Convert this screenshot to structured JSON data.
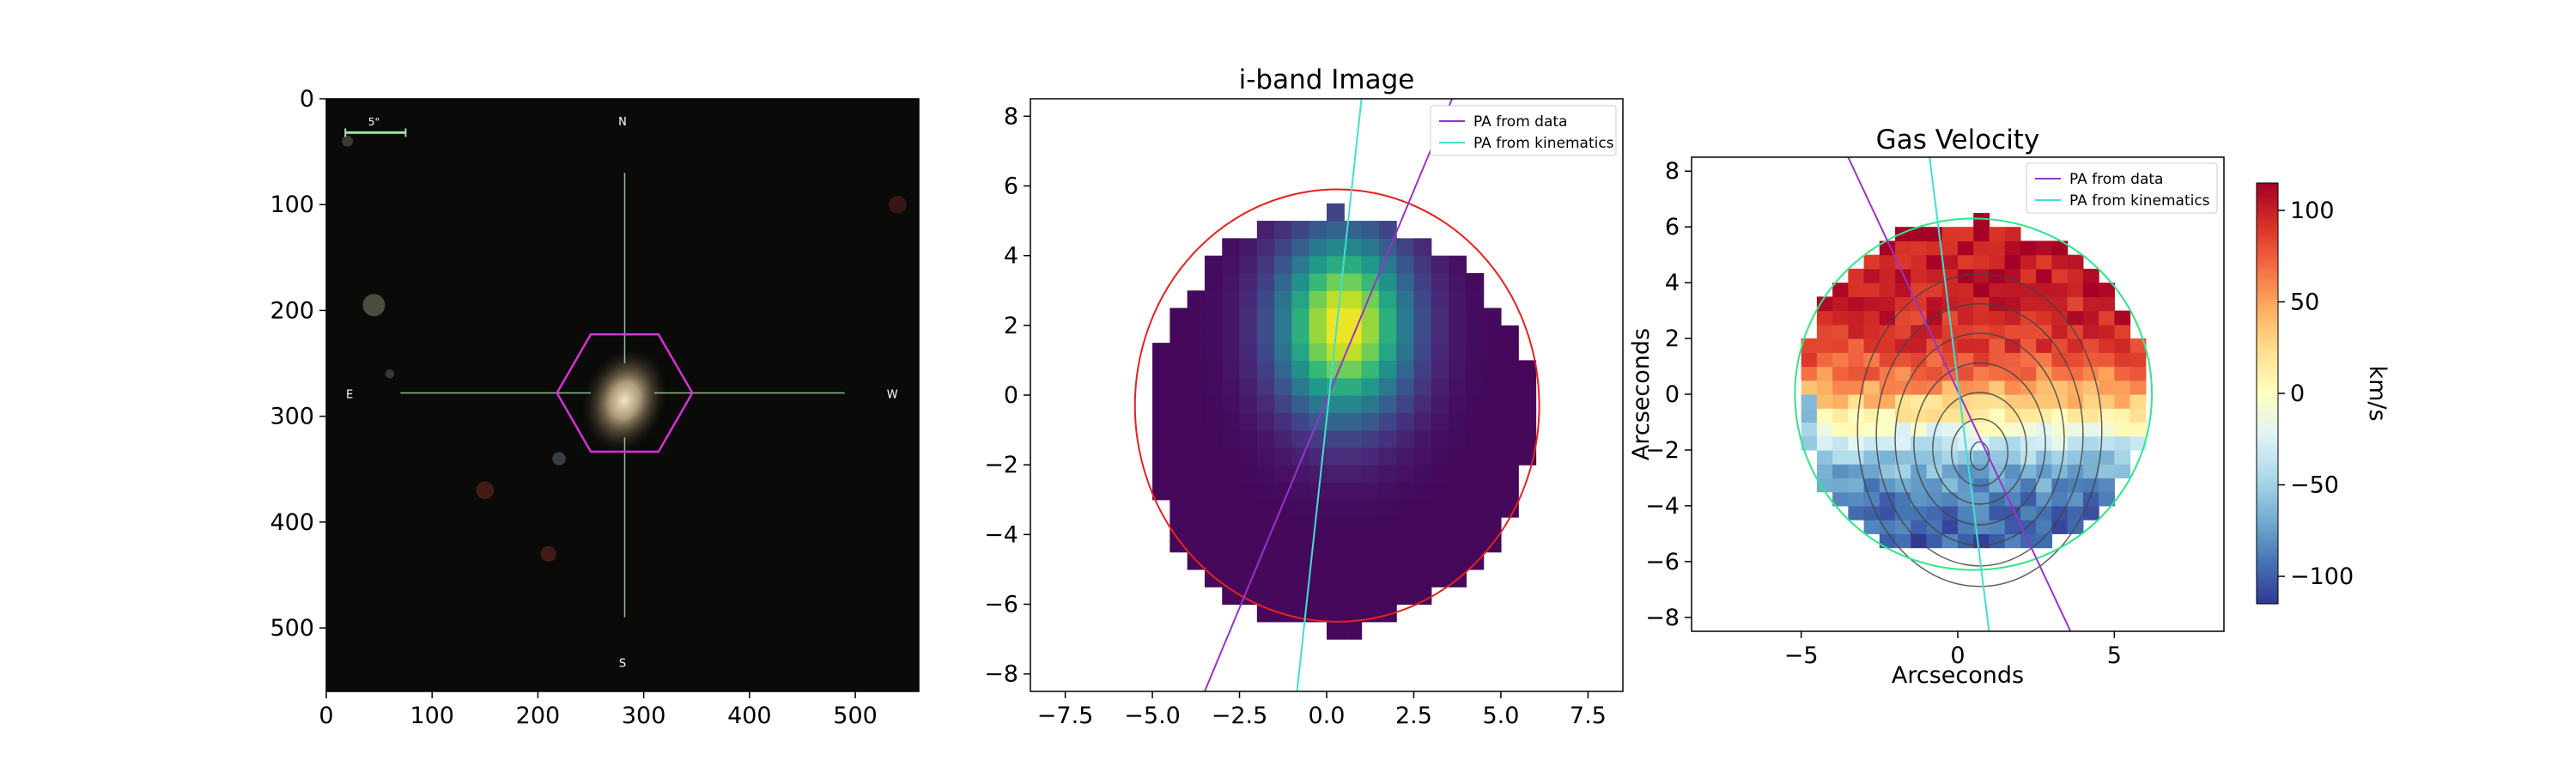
{
  "chart_data": [
    {
      "type": "image",
      "title": "",
      "xlim": [
        0,
        560
      ],
      "ylim": [
        0,
        560
      ],
      "x_ticks": [
        0,
        100,
        200,
        300,
        400,
        500
      ],
      "y_ticks": [
        0,
        100,
        200,
        300,
        400,
        500
      ],
      "compass": {
        "north": "N",
        "south": "S",
        "east": "E",
        "west": "W"
      },
      "scale_bar_label": "5\"",
      "galaxy_center": [
        282,
        285
      ],
      "hexagon_radius": 64,
      "colors": {
        "background": "#0a0a08",
        "crosshair": "#8fbf8f",
        "hexagon": "#d630d6",
        "scale_bar": "#9fe0a0"
      }
    },
    {
      "type": "heatmap",
      "title": "i-band Image",
      "xlim": [
        -8.5,
        8.5
      ],
      "ylim": [
        8.5,
        -8.5
      ],
      "x_ticks": [
        -7.5,
        -5.0,
        -2.5,
        0.0,
        2.5,
        5.0,
        7.5
      ],
      "x_tick_labels": [
        "−7.5",
        "−5.0",
        "−2.5",
        "0.0",
        "2.5",
        "5.0",
        "7.5"
      ],
      "y_ticks": [
        -8,
        -6,
        -4,
        -2,
        0,
        2,
        4,
        6,
        8
      ],
      "y_tick_labels": [
        "−8",
        "−6",
        "−4",
        "−2",
        "0",
        "2",
        "4",
        "6",
        "8"
      ],
      "peak": [
        0.5,
        2.5
      ],
      "ellipse": {
        "center": [
          0.3,
          -0.3
        ],
        "semi_x": 5.8,
        "semi_y": 6.2,
        "color": "#e8201e"
      },
      "lines": [
        {
          "name": "PA from data",
          "color": "#9932cc",
          "from": [
            -3.5,
            -8.5
          ],
          "to": [
            3.6,
            8.5
          ]
        },
        {
          "name": "PA from kinematics",
          "color": "#40e0d0",
          "from": [
            -0.85,
            -8.5
          ],
          "to": [
            1.0,
            8.5
          ]
        }
      ],
      "legend": {
        "placement": "top-right",
        "entries": [
          "PA from data",
          "PA from kinematics"
        ]
      }
    },
    {
      "type": "heatmap",
      "title": "Gas Velocity",
      "xlabel": "Arcseconds",
      "ylabel": "Arcseconds",
      "xlim": [
        -8.5,
        8.5
      ],
      "ylim": [
        -8.5,
        8.5
      ],
      "x_ticks": [
        -5,
        0,
        5
      ],
      "x_tick_labels": [
        "−5",
        "0",
        "5"
      ],
      "y_ticks": [
        -8,
        -6,
        -4,
        -2,
        0,
        2,
        4,
        6,
        8
      ],
      "y_tick_labels": [
        "−8",
        "−6",
        "−4",
        "−2",
        "0",
        "2",
        "4",
        "6",
        "8"
      ],
      "ellipse": {
        "center": [
          0.5,
          0.0
        ],
        "semi_x": 5.7,
        "semi_y": 6.3,
        "color": "#2ee886"
      },
      "lines": [
        {
          "name": "PA from data",
          "color": "#9932cc",
          "from": [
            -3.5,
            8.5
          ],
          "to": [
            3.6,
            -8.5
          ]
        },
        {
          "name": "PA from kinematics",
          "color": "#40e0d0",
          "from": [
            -0.9,
            8.5
          ],
          "to": [
            1.0,
            -8.5
          ]
        }
      ],
      "contour_center": [
        0.7,
        -2.3
      ],
      "legend": {
        "placement": "top-right",
        "entries": [
          "PA from data",
          "PA from kinematics"
        ]
      },
      "colorbar": {
        "label": "km/s",
        "min": -115,
        "max": 115,
        "ticks": [
          100,
          50,
          0,
          -50,
          -100
        ],
        "tick_labels": [
          "100",
          "50",
          "0",
          "−50",
          "−100"
        ],
        "colormap": "RdYlBu_r"
      }
    }
  ]
}
